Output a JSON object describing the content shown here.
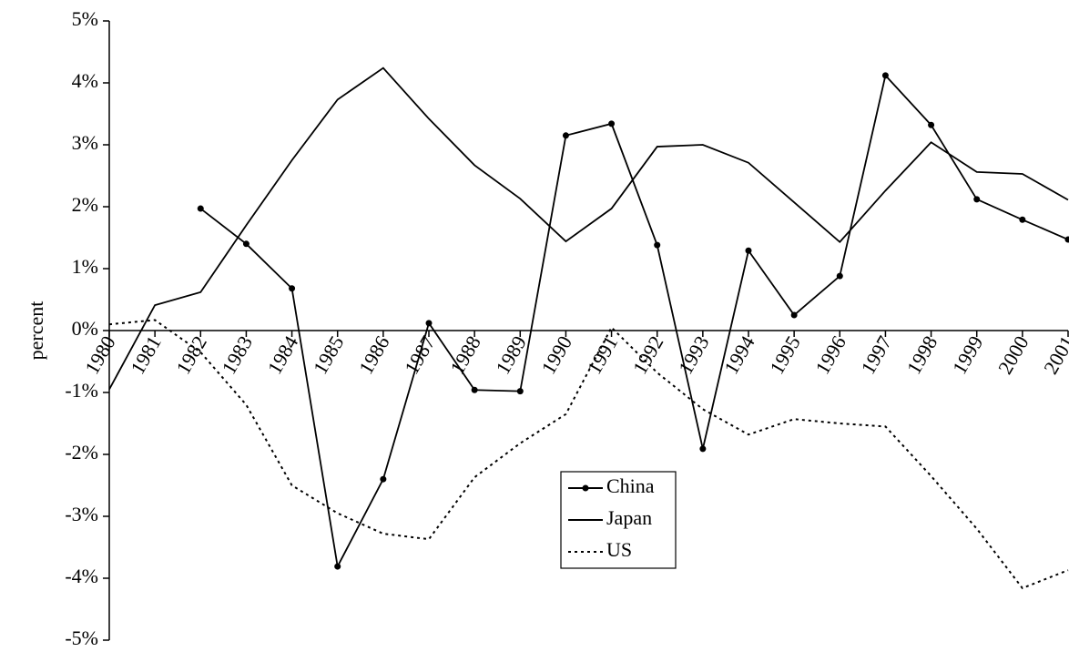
{
  "chart_data": {
    "type": "line",
    "ylabel": "percent",
    "categories": [
      "1980",
      "1981",
      "1982",
      "1983",
      "1984",
      "1985",
      "1986",
      "1987",
      "1988",
      "1989",
      "1990",
      "1991",
      "1992",
      "1993",
      "1994",
      "1995",
      "1996",
      "1997",
      "1998",
      "1999",
      "2000",
      "2001"
    ],
    "series": [
      {
        "name": "China",
        "color": "#000000",
        "marker": "circle",
        "dash": "solid",
        "values": [
          null,
          null,
          1.97,
          1.4,
          0.68,
          -3.81,
          -2.4,
          0.12,
          -0.96,
          -0.98,
          3.15,
          3.34,
          1.38,
          -1.91,
          1.29,
          0.25,
          0.88,
          4.12,
          3.32,
          2.12,
          1.79,
          1.47
        ]
      },
      {
        "name": "Japan",
        "color": "#000000",
        "marker": "none",
        "dash": "solid",
        "values": [
          -0.95,
          0.41,
          0.62,
          1.7,
          2.75,
          3.73,
          4.24,
          3.42,
          2.67,
          2.13,
          1.44,
          1.97,
          2.97,
          3.0,
          2.71,
          2.07,
          1.43,
          2.26,
          3.04,
          2.56,
          2.53,
          2.11
        ]
      },
      {
        "name": "US",
        "color": "#000000",
        "marker": "none",
        "dash": "dotted",
        "values": [
          0.1,
          0.17,
          -0.35,
          -1.2,
          -2.5,
          -2.95,
          -3.28,
          -3.37,
          -2.37,
          -1.82,
          -1.35,
          0.05,
          -0.68,
          -1.27,
          -1.68,
          -1.43,
          -1.5,
          -1.55,
          -2.35,
          -3.2,
          -4.16,
          -3.87
        ]
      }
    ],
    "ylim": [
      -5,
      5
    ],
    "yticks": [
      {
        "value": -5,
        "label": "-5%"
      },
      {
        "value": -4,
        "label": "-4%"
      },
      {
        "value": -3,
        "label": "-3%"
      },
      {
        "value": -2,
        "label": "-2%"
      },
      {
        "value": -1,
        "label": "-1%"
      },
      {
        "value": 0,
        "label": "0%"
      },
      {
        "value": 1,
        "label": "1%"
      },
      {
        "value": 2,
        "label": "2%"
      },
      {
        "value": 3,
        "label": "3%"
      },
      {
        "value": 4,
        "label": "4%"
      },
      {
        "value": 5,
        "label": "5%"
      }
    ],
    "grid": false,
    "legend": "bottom-center"
  }
}
